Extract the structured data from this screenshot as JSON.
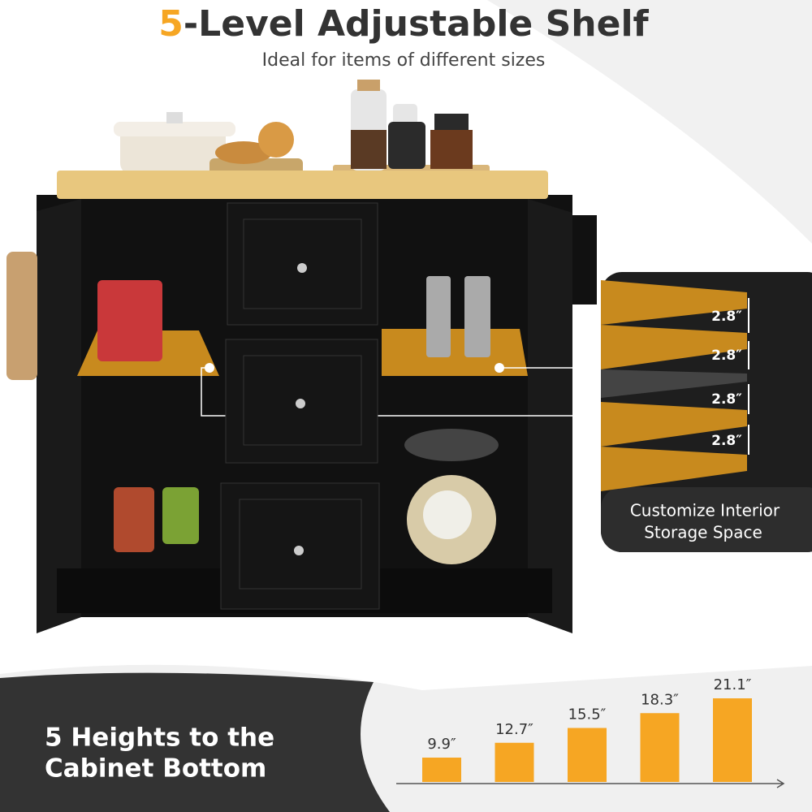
{
  "header": {
    "title_number": "5",
    "title_rest": "-Level Adjustable Shelf",
    "subtitle": "Ideal for items of different sizes"
  },
  "inset": {
    "spacing_labels": [
      "2.8″",
      "2.8″",
      "2.8″",
      "2.8″"
    ],
    "caption_line1": "Customize Interior",
    "caption_line2": "Storage Space"
  },
  "heights": {
    "heading_line1": "5 Heights to the",
    "heading_line2": "Cabinet Bottom",
    "values": [
      9.9,
      12.7,
      15.5,
      18.3,
      21.1
    ],
    "value_labels": [
      "9.9″",
      "12.7″",
      "15.5″",
      "18.3″",
      "21.1″"
    ],
    "ylim": [
      5.3,
      21.1
    ],
    "color": "#f6a623"
  }
}
